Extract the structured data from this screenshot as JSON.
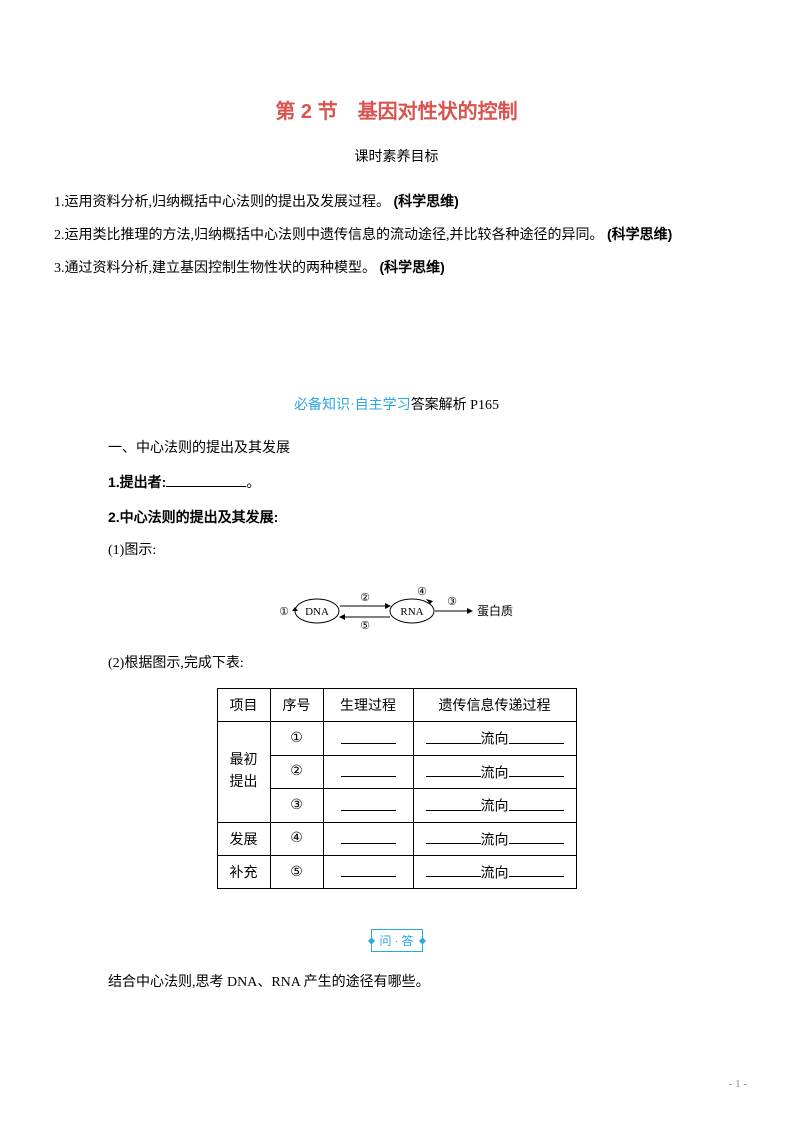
{
  "title": "第 2 节　基因对性状的控制",
  "subtitle": "课时素养目标",
  "objectives": [
    {
      "pre": "1.运用资料分析,归纳概括中心法则的提出及发展过程。",
      "tag": "(科学思维)"
    },
    {
      "pre": "2.运用类比推理的方法,归纳概括中心法则中遗传信息的流动途径,并比较各种途径的异同。",
      "tag": "(科学思维)"
    },
    {
      "pre": "3.通过资料分析,建立基因控制生物性状的两种模型。",
      "tag": "(科学思维)"
    }
  ],
  "section_label": {
    "blue": "必备知识·自主学习",
    "rest": "答案解析 P165"
  },
  "heading_a": "一、中心法则的提出及其发展",
  "line1": {
    "label": "1.提出者:",
    "suffix": "。"
  },
  "line2": "2.中心法则的提出及其发展:",
  "line3": "(1)图示:",
  "diagram": {
    "dna": "DNA",
    "rna": "RNA",
    "protein": "蛋白质",
    "labels": [
      "①",
      "②",
      "③",
      "④",
      "⑤"
    ]
  },
  "line4": "(2)根据图示,完成下表:",
  "table": {
    "headers": [
      "项目",
      "序号",
      "生理过程",
      "遗传信息传递过程"
    ],
    "group1_label": "最初提出",
    "group2_label_line1": "发展",
    "group2_label_line2": "补充",
    "rows": [
      {
        "num": "①",
        "flow": "流向"
      },
      {
        "num": "②",
        "flow": "流向"
      },
      {
        "num": "③",
        "flow": "流向"
      },
      {
        "num": "④",
        "flow": "流向"
      },
      {
        "num": "⑤",
        "flow": "流向"
      }
    ]
  },
  "qa_badge": "问 · 答",
  "qa_text": "结合中心法则,思考 DNA、RNA 产生的途径有哪些。",
  "page_number": "- 1 -",
  "colors": {
    "title": "#d9534f",
    "accent_blue": "#2aa6e0",
    "text": "#000000",
    "page_num": "#888888"
  }
}
